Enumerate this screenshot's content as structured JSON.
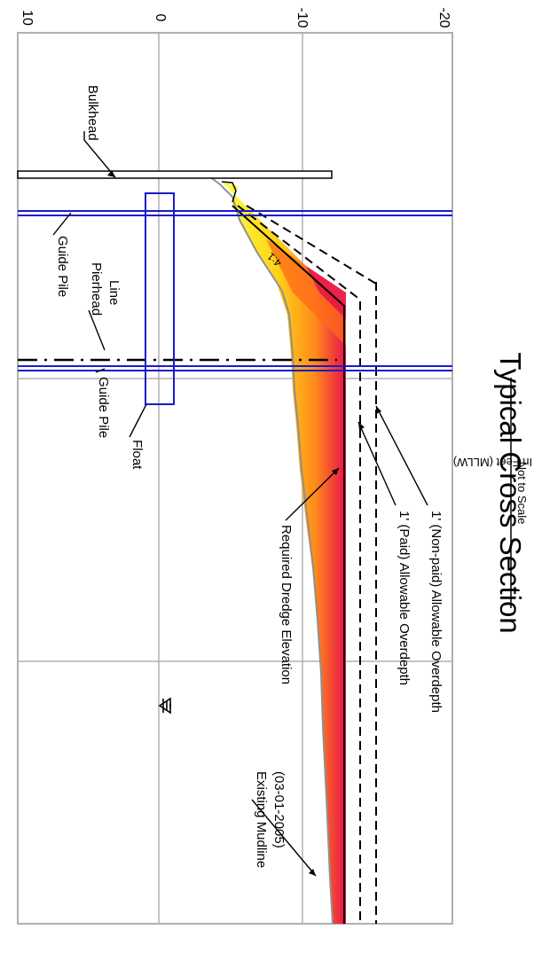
{
  "figure": {
    "title": "Typical Cross Section",
    "subtitle": "Not to Scale",
    "axis_label": "Elevation In Feet (MLLW)",
    "slope_label": "4:1"
  },
  "elevation_ticks": [
    {
      "value": 10,
      "label": "10"
    },
    {
      "value": 0,
      "label": "0"
    },
    {
      "value": -10,
      "label": "-10"
    },
    {
      "value": -20,
      "label": "-20"
    }
  ],
  "labels": {
    "bulkhead": "Bulkhead",
    "guide_pile_1": "Guide Pile",
    "pierhead_line_1": "Pierhead",
    "pierhead_line_2": "Line",
    "guide_pile_2": "Guide Pile",
    "float": "Float",
    "required_dredge": "Required Dredge Elevation",
    "paid_overdepth": "1' (Paid) Allowable Overdepth",
    "nonpaid_overdepth": "1' (Non-paid) Allowable Overdepth",
    "existing_mudline_1": "Existing Mudline",
    "existing_mudline_2": "(03-01-2005)"
  },
  "elevations_ft": {
    "required_dredge": -12,
    "paid_overdepth": -13,
    "nonpaid_overdepth": -14
  },
  "colors": {
    "grid": "#b0b0b0",
    "pile": "#1a1acc",
    "float": "#1a1acc",
    "fill_light": "#ffff33",
    "fill_mid": "#ffc21a",
    "fill_deep": "#ff6a1a",
    "fill_deepest": "#e8104a",
    "mudline": "#909090"
  }
}
